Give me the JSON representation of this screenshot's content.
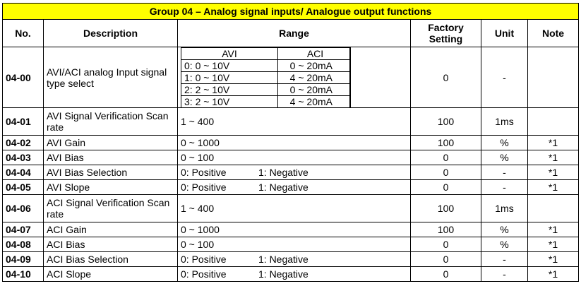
{
  "title": "Group 04 – Analog signal inputs/ Analogue output functions",
  "headers": {
    "no": "No.",
    "description": "Description",
    "range": "Range",
    "factory": "Factory Setting",
    "unit": "Unit",
    "note": "Note"
  },
  "row_0400": {
    "no": "04-00",
    "description": "AVI/ACI analog Input signal type select",
    "sub_head": [
      "AVI",
      "ACI"
    ],
    "sub_rows": [
      [
        "0: 0 ~ 10V",
        "0 ~ 20mA"
      ],
      [
        "1: 0 ~ 10V",
        "4 ~ 20mA"
      ],
      [
        "2: 2 ~ 10V",
        "0 ~ 20mA"
      ],
      [
        "3: 2 ~ 10V",
        "4 ~ 20mA"
      ]
    ],
    "factory": "0",
    "unit": "-",
    "note": ""
  },
  "rows": [
    {
      "no": "04-01",
      "description": "AVI Signal Verification Scan rate",
      "range": "1 ~ 400",
      "range2": "",
      "factory": "100",
      "unit": "1ms",
      "note": "",
      "tall": true
    },
    {
      "no": "04-02",
      "description": "AVI Gain",
      "range": "0 ~ 1000",
      "range2": "",
      "factory": "100",
      "unit": "%",
      "note": "*1",
      "tall": false
    },
    {
      "no": "04-03",
      "description": "AVI Bias",
      "range": "0 ~ 100",
      "range2": "",
      "factory": "0",
      "unit": "%",
      "note": "*1",
      "tall": false
    },
    {
      "no": "04-04",
      "description": "AVI Bias Selection",
      "range": "0: Positive",
      "range2": "1: Negative",
      "factory": "0",
      "unit": "-",
      "note": "*1",
      "tall": false
    },
    {
      "no": "04-05",
      "description": "AVI Slope",
      "range": "0: Positive",
      "range2": "1: Negative",
      "factory": "0",
      "unit": "-",
      "note": "*1",
      "tall": false
    },
    {
      "no": "04-06",
      "description": "ACI Signal Verification Scan rate",
      "range": "1 ~ 400",
      "range2": "",
      "factory": "100",
      "unit": "1ms",
      "note": "",
      "tall": true
    },
    {
      "no": "04-07",
      "description": "ACI Gain",
      "range": "0 ~ 1000",
      "range2": "",
      "factory": "100",
      "unit": "%",
      "note": "*1",
      "tall": false
    },
    {
      "no": "04-08",
      "description": "ACI Bias",
      "range": "0 ~ 100",
      "range2": "",
      "factory": "0",
      "unit": "%",
      "note": "*1",
      "tall": false
    },
    {
      "no": "04-09",
      "description": "ACI Bias Selection",
      "range": "0: Positive",
      "range2": "1: Negative",
      "factory": "0",
      "unit": "-",
      "note": "*1",
      "tall": false
    },
    {
      "no": "04-10",
      "description": "ACI Slope",
      "range": "0: Positive",
      "range2": "1: Negative",
      "factory": "0",
      "unit": "-",
      "note": "*1",
      "tall": false
    }
  ]
}
